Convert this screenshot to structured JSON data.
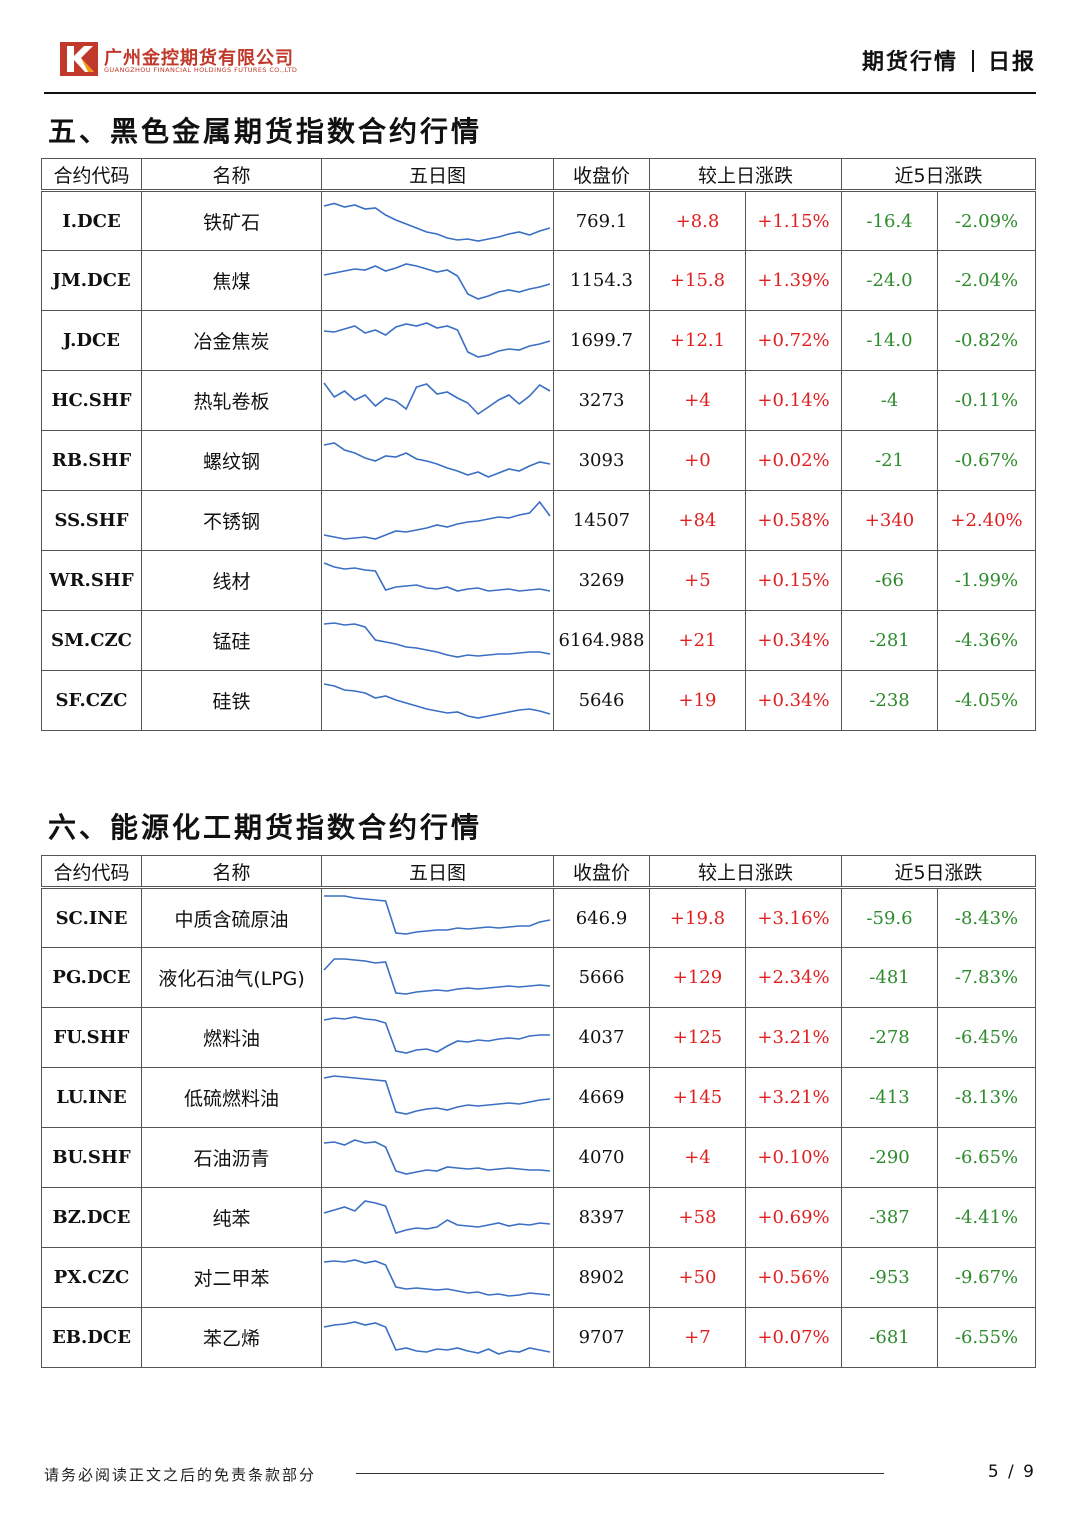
{
  "header": {
    "company_cn": "广州金控期货有限公司",
    "company_en": "GUANGZHOU FINANCIAL HOLDINGS FUTURES CO.,LTD",
    "doc_type": "期货行情",
    "doc_freq": "日报",
    "brand_color": "#c0392b"
  },
  "columns": {
    "code": "合约代码",
    "name": "名称",
    "chart": "五日图",
    "close": "收盘价",
    "daily": "较上日涨跌",
    "five_day": "近5日涨跌"
  },
  "colors": {
    "up": "#e02020",
    "down": "#2e8b2e",
    "sparkline": "#3a6fc4"
  },
  "sections": [
    {
      "title": "五、黑色金属期货指数合约行情",
      "rows": [
        {
          "code": "I.DCE",
          "name": "铁矿石",
          "close": "769.1",
          "chg": "+8.8",
          "pct": "+1.15%",
          "chg5": "-16.4",
          "pct5": "-2.09%",
          "spark": [
            0.8,
            0.85,
            0.78,
            0.82,
            0.74,
            0.76,
            0.62,
            0.52,
            0.44,
            0.36,
            0.28,
            0.24,
            0.16,
            0.12,
            0.14,
            0.1,
            0.14,
            0.18,
            0.24,
            0.28,
            0.22,
            0.3,
            0.36
          ]
        },
        {
          "code": "JM.DCE",
          "name": "焦煤",
          "close": "1154.3",
          "chg": "+15.8",
          "pct": "+1.39%",
          "chg5": "-24.0",
          "pct5": "-2.04%",
          "spark": [
            0.62,
            0.66,
            0.7,
            0.74,
            0.72,
            0.8,
            0.7,
            0.76,
            0.84,
            0.8,
            0.74,
            0.68,
            0.72,
            0.6,
            0.24,
            0.14,
            0.2,
            0.28,
            0.32,
            0.28,
            0.34,
            0.38,
            0.44
          ]
        },
        {
          "code": "J.DCE",
          "name": "冶金焦炭",
          "close": "1699.7",
          "chg": "+12.1",
          "pct": "+0.72%",
          "chg5": "-14.0",
          "pct5": "-0.82%",
          "spark": [
            0.7,
            0.68,
            0.74,
            0.8,
            0.66,
            0.72,
            0.62,
            0.78,
            0.84,
            0.8,
            0.86,
            0.76,
            0.8,
            0.72,
            0.28,
            0.18,
            0.22,
            0.3,
            0.34,
            0.32,
            0.4,
            0.44,
            0.5
          ]
        },
        {
          "code": "HC.SHF",
          "name": "热轧卷板",
          "close": "3273",
          "chg": "+4",
          "pct": "+0.14%",
          "chg5": "-4",
          "pct5": "-0.11%",
          "spark": [
            0.86,
            0.58,
            0.7,
            0.52,
            0.62,
            0.4,
            0.56,
            0.5,
            0.34,
            0.78,
            0.84,
            0.64,
            0.68,
            0.56,
            0.46,
            0.24,
            0.38,
            0.52,
            0.62,
            0.44,
            0.6,
            0.82,
            0.7
          ]
        },
        {
          "code": "RB.SHF",
          "name": "螺纹钢",
          "close": "3093",
          "chg": "+0",
          "pct": "+0.02%",
          "chg5": "-21",
          "pct5": "-0.67%",
          "spark": [
            0.82,
            0.86,
            0.72,
            0.66,
            0.56,
            0.5,
            0.6,
            0.58,
            0.66,
            0.54,
            0.5,
            0.44,
            0.36,
            0.3,
            0.22,
            0.28,
            0.18,
            0.26,
            0.34,
            0.3,
            0.4,
            0.48,
            0.44
          ]
        },
        {
          "code": "SS.SHF",
          "name": "不锈钢",
          "close": "14507",
          "chg": "+84",
          "pct": "+0.58%",
          "chg5": "+340",
          "pct5": "+2.40%",
          "spark": [
            0.22,
            0.18,
            0.14,
            0.16,
            0.18,
            0.14,
            0.22,
            0.3,
            0.28,
            0.32,
            0.36,
            0.42,
            0.38,
            0.44,
            0.48,
            0.5,
            0.54,
            0.58,
            0.56,
            0.62,
            0.66,
            0.88,
            0.6
          ]
        },
        {
          "code": "WR.SHF",
          "name": "线材",
          "close": "3269",
          "chg": "+5",
          "pct": "+0.15%",
          "chg5": "-66",
          "pct5": "-1.99%",
          "spark": [
            0.86,
            0.78,
            0.74,
            0.76,
            0.72,
            0.7,
            0.32,
            0.38,
            0.4,
            0.42,
            0.36,
            0.34,
            0.38,
            0.3,
            0.34,
            0.36,
            0.3,
            0.32,
            0.34,
            0.3,
            0.32,
            0.34,
            0.3
          ]
        },
        {
          "code": "SM.CZC",
          "name": "锰硅",
          "close": "6164.988",
          "chg": "+21",
          "pct": "+0.34%",
          "chg5": "-281",
          "pct5": "-4.36%",
          "spark": [
            0.84,
            0.86,
            0.82,
            0.84,
            0.78,
            0.52,
            0.48,
            0.44,
            0.38,
            0.36,
            0.32,
            0.28,
            0.22,
            0.18,
            0.22,
            0.2,
            0.22,
            0.24,
            0.24,
            0.26,
            0.28,
            0.28,
            0.24
          ]
        },
        {
          "code": "SF.CZC",
          "name": "硅铁",
          "close": "5646",
          "chg": "+19",
          "pct": "+0.34%",
          "chg5": "-238",
          "pct5": "-4.05%",
          "spark": [
            0.84,
            0.8,
            0.72,
            0.7,
            0.66,
            0.56,
            0.6,
            0.52,
            0.46,
            0.4,
            0.34,
            0.3,
            0.26,
            0.28,
            0.2,
            0.16,
            0.2,
            0.24,
            0.28,
            0.32,
            0.34,
            0.3,
            0.24
          ]
        }
      ]
    },
    {
      "title": "六、能源化工期货指数合约行情",
      "rows": [
        {
          "code": "SC.INE",
          "name": "中质含硫原油",
          "close": "646.9",
          "chg": "+19.8",
          "pct": "+3.16%",
          "chg5": "-59.6",
          "pct5": "-8.43%",
          "spark": [
            0.94,
            0.94,
            0.94,
            0.9,
            0.88,
            0.86,
            0.84,
            0.2,
            0.18,
            0.22,
            0.24,
            0.26,
            0.26,
            0.3,
            0.28,
            0.3,
            0.32,
            0.3,
            0.32,
            0.34,
            0.34,
            0.42,
            0.46
          ]
        },
        {
          "code": "PG.DCE",
          "name": "液化石油气(LPG)",
          "close": "5666",
          "chg": "+129",
          "pct": "+2.34%",
          "chg5": "-481",
          "pct5": "-7.83%",
          "spark": [
            0.66,
            0.88,
            0.88,
            0.86,
            0.84,
            0.8,
            0.82,
            0.2,
            0.18,
            0.22,
            0.24,
            0.26,
            0.24,
            0.28,
            0.3,
            0.28,
            0.3,
            0.32,
            0.34,
            0.32,
            0.34,
            0.36,
            0.34
          ]
        },
        {
          "code": "FU.SHF",
          "name": "燃料油",
          "close": "4037",
          "chg": "+125",
          "pct": "+3.21%",
          "chg5": "-278",
          "pct5": "-6.45%",
          "spark": [
            0.86,
            0.9,
            0.88,
            0.92,
            0.88,
            0.86,
            0.8,
            0.24,
            0.2,
            0.26,
            0.28,
            0.22,
            0.34,
            0.44,
            0.42,
            0.46,
            0.44,
            0.48,
            0.5,
            0.48,
            0.54,
            0.56,
            0.56
          ]
        },
        {
          "code": "LU.INE",
          "name": "低硫燃料油",
          "close": "4669",
          "chg": "+145",
          "pct": "+3.21%",
          "chg5": "-413",
          "pct5": "-8.13%",
          "spark": [
            0.9,
            0.94,
            0.92,
            0.9,
            0.88,
            0.86,
            0.84,
            0.22,
            0.18,
            0.24,
            0.28,
            0.3,
            0.26,
            0.32,
            0.36,
            0.34,
            0.36,
            0.38,
            0.4,
            0.38,
            0.42,
            0.46,
            0.48
          ]
        },
        {
          "code": "BU.SHF",
          "name": "石油沥青",
          "close": "4070",
          "chg": "+4",
          "pct": "+0.10%",
          "chg5": "-290",
          "pct5": "-6.65%",
          "spark": [
            0.8,
            0.82,
            0.76,
            0.86,
            0.8,
            0.82,
            0.72,
            0.24,
            0.18,
            0.22,
            0.26,
            0.24,
            0.32,
            0.3,
            0.28,
            0.3,
            0.26,
            0.28,
            0.3,
            0.28,
            0.26,
            0.26,
            0.24
          ]
        },
        {
          "code": "BZ.DCE",
          "name": "纯苯",
          "close": "8397",
          "chg": "+58",
          "pct": "+0.69%",
          "chg5": "-387",
          "pct5": "-4.41%",
          "spark": [
            0.6,
            0.66,
            0.72,
            0.64,
            0.84,
            0.8,
            0.74,
            0.2,
            0.26,
            0.3,
            0.28,
            0.32,
            0.46,
            0.36,
            0.34,
            0.32,
            0.36,
            0.4,
            0.34,
            0.38,
            0.36,
            0.4,
            0.38
          ]
        },
        {
          "code": "PX.CZC",
          "name": "对二甲苯",
          "close": "8902",
          "chg": "+50",
          "pct": "+0.56%",
          "chg5": "-953",
          "pct5": "-9.67%",
          "spark": [
            0.82,
            0.84,
            0.82,
            0.86,
            0.8,
            0.84,
            0.76,
            0.32,
            0.28,
            0.3,
            0.28,
            0.26,
            0.28,
            0.24,
            0.2,
            0.22,
            0.16,
            0.18,
            0.14,
            0.16,
            0.2,
            0.18,
            0.16
          ]
        },
        {
          "code": "EB.DCE",
          "name": "苯乙烯",
          "close": "9707",
          "chg": "+7",
          "pct": "+0.07%",
          "chg5": "-681",
          "pct5": "-6.55%",
          "spark": [
            0.72,
            0.76,
            0.78,
            0.82,
            0.76,
            0.8,
            0.72,
            0.26,
            0.3,
            0.24,
            0.22,
            0.28,
            0.26,
            0.3,
            0.24,
            0.2,
            0.28,
            0.18,
            0.24,
            0.22,
            0.3,
            0.26,
            0.22
          ]
        }
      ]
    }
  ],
  "footer": {
    "disclaimer": "请务必阅读正文之后的免责条款部分",
    "page": "5 / 9"
  }
}
